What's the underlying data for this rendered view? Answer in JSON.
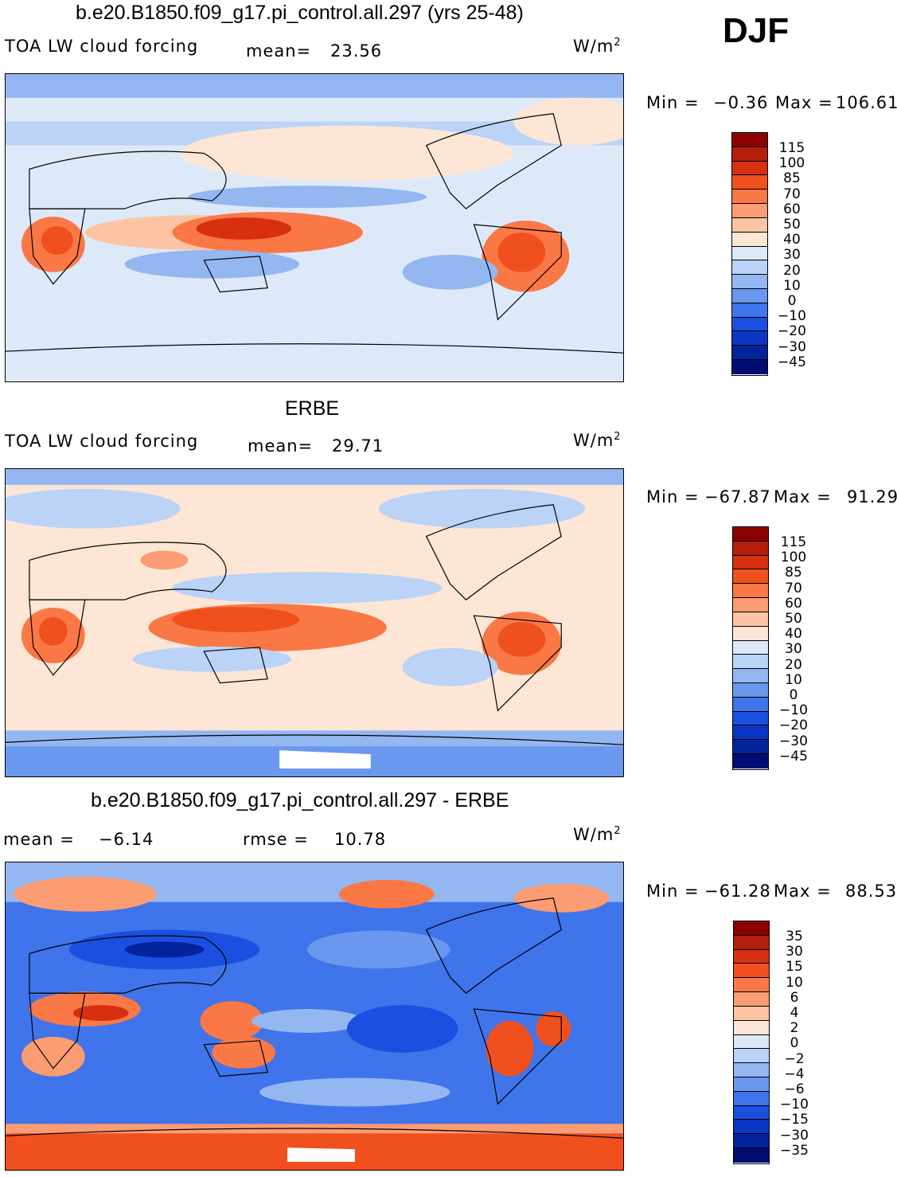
{
  "season": "DJF",
  "panels": [
    {
      "id": "model",
      "title": "b.e20.B1850.f09_g17.pi_control.all.297 (yrs 25-48)",
      "left_label": "TOA LW cloud forcing",
      "stat_label": "mean=",
      "stat_value": "23.56",
      "units": "W/m",
      "units_exp": "2",
      "min_label": "Min",
      "min_value": "−0.36",
      "max_label": "Max",
      "max_value": "106.61",
      "colorbar_labels": [
        "115",
        "100",
        "85",
        "70",
        "60",
        "50",
        "40",
        "30",
        "20",
        "10",
        "0",
        "−10",
        "−20",
        "−30",
        "−45"
      ]
    },
    {
      "id": "obs",
      "title": "ERBE",
      "left_label": "TOA LW cloud forcing",
      "stat_label": "mean=",
      "stat_value": "29.71",
      "units": "W/m",
      "units_exp": "2",
      "min_label": "Min",
      "min_value": "−67.87",
      "max_label": "Max",
      "max_value": "91.29",
      "colorbar_labels": [
        "115",
        "100",
        "85",
        "70",
        "60",
        "50",
        "40",
        "30",
        "20",
        "10",
        "0",
        "−10",
        "−20",
        "−30",
        "−45"
      ]
    },
    {
      "id": "diff",
      "title": "b.e20.B1850.f09_g17.pi_control.all.297 - ERBE",
      "left_label": "mean =",
      "left_value": "−6.14",
      "stat_label": "rmse =",
      "stat_value": "10.78",
      "units": "W/m",
      "units_exp": "2",
      "min_label": "Min",
      "min_value": "−61.28",
      "max_label": "Max",
      "max_value": "88.53",
      "colorbar_labels": [
        "35",
        "30",
        "15",
        "10",
        "6",
        "4",
        "2",
        "0",
        "−2",
        "−4",
        "−6",
        "−10",
        "−15",
        "−30",
        "−35"
      ]
    }
  ],
  "colors": {
    "colorbar_top_to_bottom": [
      "#8b0000",
      "#b41e0a",
      "#d73010",
      "#f0501e",
      "#fa7846",
      "#fc9c72",
      "#fdc4a4",
      "#fde6d6",
      "#dde9f9",
      "#bad3f7",
      "#94b7f2",
      "#6a98ee",
      "#3f74ea",
      "#1a4fe0",
      "#0a35c4",
      "#03239a",
      "#000d73"
    ],
    "land_outline": "#000000"
  }
}
